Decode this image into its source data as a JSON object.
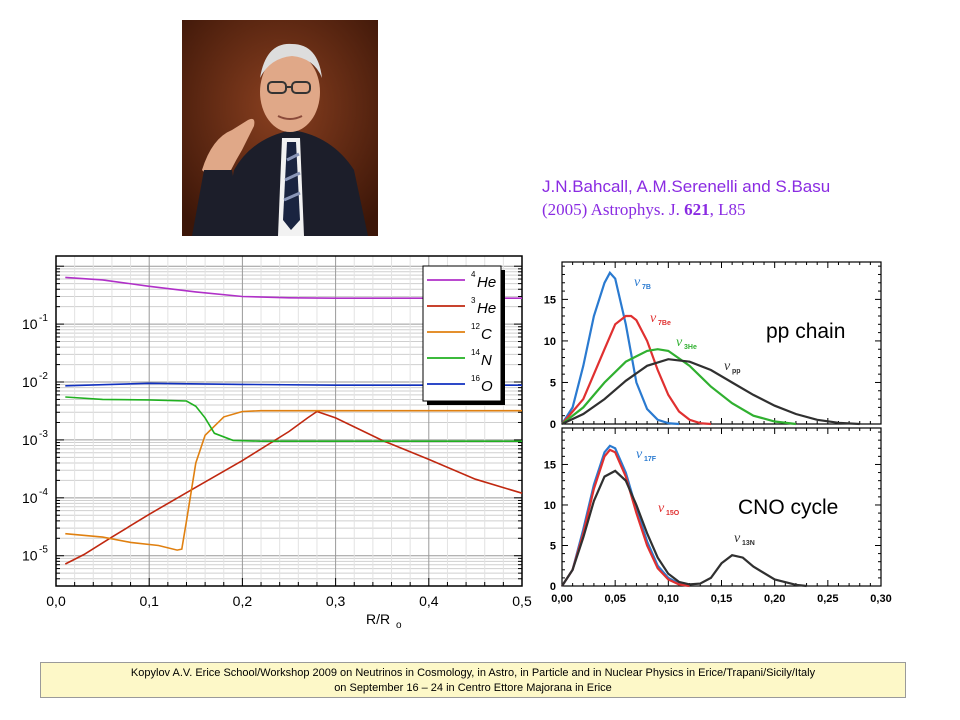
{
  "reference": {
    "authors": "J.N.Bahcall, A.M.Serenelli and S.Basu",
    "citation_prefix": "(2005) Astrophys. J. ",
    "volume": "621",
    "citation_suffix": ", L85"
  },
  "footer": {
    "line1": "Kopylov A.V.  Erice School/Workshop 2009 on Neutrinos in Cosmology, in Astro, in Particle and in Nuclear Physics in Erice/Trapani/Sicily/Italy",
    "line2": "on September 16 – 24 in Centro Ettore Majorana in Erice"
  },
  "chart_data": [
    {
      "type": "line",
      "xlabel": "R/R",
      "xlabel_sub": "o",
      "xlim": [
        0,
        0.5
      ],
      "y_scale": "log",
      "ylim": [
        3e-06,
        1.5
      ],
      "grid": true,
      "legend_placement": "top-right",
      "x_ticks": [
        {
          "v": 0,
          "label": "0,0"
        },
        {
          "v": 0.1,
          "label": "0,1"
        },
        {
          "v": 0.2,
          "label": "0,2"
        },
        {
          "v": 0.3,
          "label": "0,3"
        },
        {
          "v": 0.4,
          "label": "0,4"
        },
        {
          "v": 0.5,
          "label": "0,5"
        }
      ],
      "y_ticks": [
        {
          "v": 0.1,
          "base": "10",
          "exp": "-1"
        },
        {
          "v": 0.01,
          "base": "10",
          "exp": "-2"
        },
        {
          "v": 0.001,
          "base": "10",
          "exp": "-3"
        },
        {
          "v": 0.0001,
          "base": "10",
          "exp": "-4"
        },
        {
          "v": 1e-05,
          "base": "10",
          "exp": "-5"
        }
      ],
      "series": [
        {
          "mass": "4",
          "name": "He",
          "color": "#b030c8",
          "x": [
            0.01,
            0.05,
            0.1,
            0.15,
            0.2,
            0.25,
            0.3,
            0.4,
            0.5
          ],
          "y": [
            0.64,
            0.58,
            0.45,
            0.36,
            0.3,
            0.285,
            0.28,
            0.28,
            0.28
          ]
        },
        {
          "mass": "3",
          "name": "He",
          "color": "#c02810",
          "x": [
            0.01,
            0.03,
            0.06,
            0.1,
            0.15,
            0.2,
            0.25,
            0.27,
            0.28,
            0.3,
            0.35,
            0.4,
            0.45,
            0.5
          ],
          "y": [
            7.2e-06,
            1.05e-05,
            2.1e-05,
            5.2e-05,
            0.000152,
            0.00044,
            0.0014,
            0.0024,
            0.0031,
            0.0024,
            0.00098,
            0.00046,
            0.00021,
            0.00012
          ]
        },
        {
          "mass": "12",
          "name": "C",
          "color": "#e08010",
          "x": [
            0.01,
            0.05,
            0.08,
            0.11,
            0.13,
            0.135,
            0.14,
            0.15,
            0.16,
            0.18,
            0.2,
            0.22,
            0.3,
            0.5
          ],
          "y": [
            2.4e-05,
            2.1e-05,
            1.7e-05,
            1.5e-05,
            1.25e-05,
            1.3e-05,
            4e-05,
            0.0004,
            0.0012,
            0.0025,
            0.0031,
            0.0032,
            0.0032,
            0.0032
          ]
        },
        {
          "mass": "14",
          "name": "N",
          "color": "#20b020",
          "x": [
            0.01,
            0.05,
            0.1,
            0.14,
            0.15,
            0.16,
            0.17,
            0.19,
            0.22,
            0.3,
            0.5
          ],
          "y": [
            0.0055,
            0.005,
            0.0049,
            0.0047,
            0.0038,
            0.0024,
            0.0013,
            0.00098,
            0.00095,
            0.00095,
            0.00095
          ]
        },
        {
          "mass": "16",
          "name": "O",
          "color": "#1030c0",
          "x": [
            0.01,
            0.1,
            0.2,
            0.3,
            0.5
          ],
          "y": [
            0.0086,
            0.0095,
            0.0091,
            0.0088,
            0.0088
          ]
        }
      ]
    },
    {
      "type": "line",
      "title": "pp chain",
      "xlim": [
        0,
        0.3
      ],
      "ylim": [
        0,
        19.5
      ],
      "y_ticks": [
        0,
        5,
        10,
        15
      ],
      "series": [
        {
          "label": "ν",
          "sub": "7B",
          "color": "#2a7ad0",
          "x": [
            0,
            0.01,
            0.02,
            0.03,
            0.04,
            0.045,
            0.05,
            0.06,
            0.07,
            0.08,
            0.09,
            0.1,
            0.11
          ],
          "y": [
            0,
            2,
            7,
            13,
            17,
            18.2,
            17.5,
            12,
            5,
            1.8,
            0.5,
            0.1,
            0
          ]
        },
        {
          "label": "ν",
          "sub": "7Be",
          "color": "#e03030",
          "x": [
            0,
            0.02,
            0.04,
            0.05,
            0.06,
            0.065,
            0.07,
            0.08,
            0.09,
            0.1,
            0.11,
            0.12,
            0.13,
            0.14
          ],
          "y": [
            0,
            3,
            9,
            12,
            13,
            13,
            12.5,
            10,
            6.5,
            3.5,
            1.5,
            0.5,
            0.1,
            0
          ]
        },
        {
          "label": "ν",
          "sub": "3He",
          "color": "#30b030",
          "x": [
            0,
            0.02,
            0.04,
            0.06,
            0.08,
            0.09,
            0.1,
            0.12,
            0.14,
            0.16,
            0.18,
            0.2,
            0.22
          ],
          "y": [
            0,
            2,
            5,
            7.5,
            8.8,
            9,
            8.8,
            7,
            4.5,
            2.5,
            1,
            0.3,
            0
          ]
        },
        {
          "label": "ν",
          "sub": "pp",
          "color": "#303030",
          "x": [
            0,
            0.02,
            0.04,
            0.06,
            0.08,
            0.1,
            0.12,
            0.14,
            0.16,
            0.18,
            0.2,
            0.22,
            0.24,
            0.26,
            0.28
          ],
          "y": [
            0,
            1.2,
            3,
            5.2,
            7,
            7.8,
            7.5,
            6.5,
            5,
            3.5,
            2.2,
            1.2,
            0.5,
            0.15,
            0
          ]
        }
      ]
    },
    {
      "type": "line",
      "title": "CNO cycle",
      "xlabel": "",
      "xlim": [
        0,
        0.3
      ],
      "ylim": [
        0,
        19.5
      ],
      "x_ticks": [
        "0,00",
        "0,05",
        "0,10",
        "0,15",
        "0,20",
        "0,25",
        "0,30"
      ],
      "y_ticks": [
        0,
        5,
        10,
        15
      ],
      "series": [
        {
          "label": "ν",
          "sub": "17F",
          "color": "#2a7ad0",
          "x": [
            0,
            0.01,
            0.02,
            0.03,
            0.04,
            0.045,
            0.05,
            0.06,
            0.07,
            0.08,
            0.09,
            0.1,
            0.11,
            0.12
          ],
          "y": [
            0,
            2,
            7,
            12.5,
            16.5,
            17.3,
            17,
            14,
            9.5,
            5.5,
            2.5,
            1,
            0.3,
            0
          ]
        },
        {
          "label": "ν",
          "sub": "15O",
          "color": "#e03030",
          "x": [
            0,
            0.01,
            0.02,
            0.03,
            0.04,
            0.045,
            0.05,
            0.06,
            0.07,
            0.08,
            0.09,
            0.1,
            0.11,
            0.12
          ],
          "y": [
            0,
            2,
            6.5,
            12,
            16,
            16.8,
            16.5,
            13.5,
            9,
            5,
            2.2,
            0.8,
            0.2,
            0
          ]
        },
        {
          "label": "ν",
          "sub": "13N",
          "color": "#303030",
          "x": [
            0,
            0.01,
            0.02,
            0.03,
            0.04,
            0.05,
            0.06,
            0.07,
            0.08,
            0.09,
            0.1,
            0.11,
            0.12,
            0.13,
            0.14,
            0.15,
            0.16,
            0.17,
            0.18,
            0.2,
            0.22,
            0.23
          ],
          "y": [
            0,
            2,
            6,
            10.5,
            13.5,
            14.2,
            13,
            10,
            6.5,
            3.5,
            1.5,
            0.5,
            0.2,
            0.3,
            1,
            2.8,
            3.8,
            3.5,
            2.4,
            0.8,
            0.15,
            0
          ]
        }
      ]
    }
  ]
}
